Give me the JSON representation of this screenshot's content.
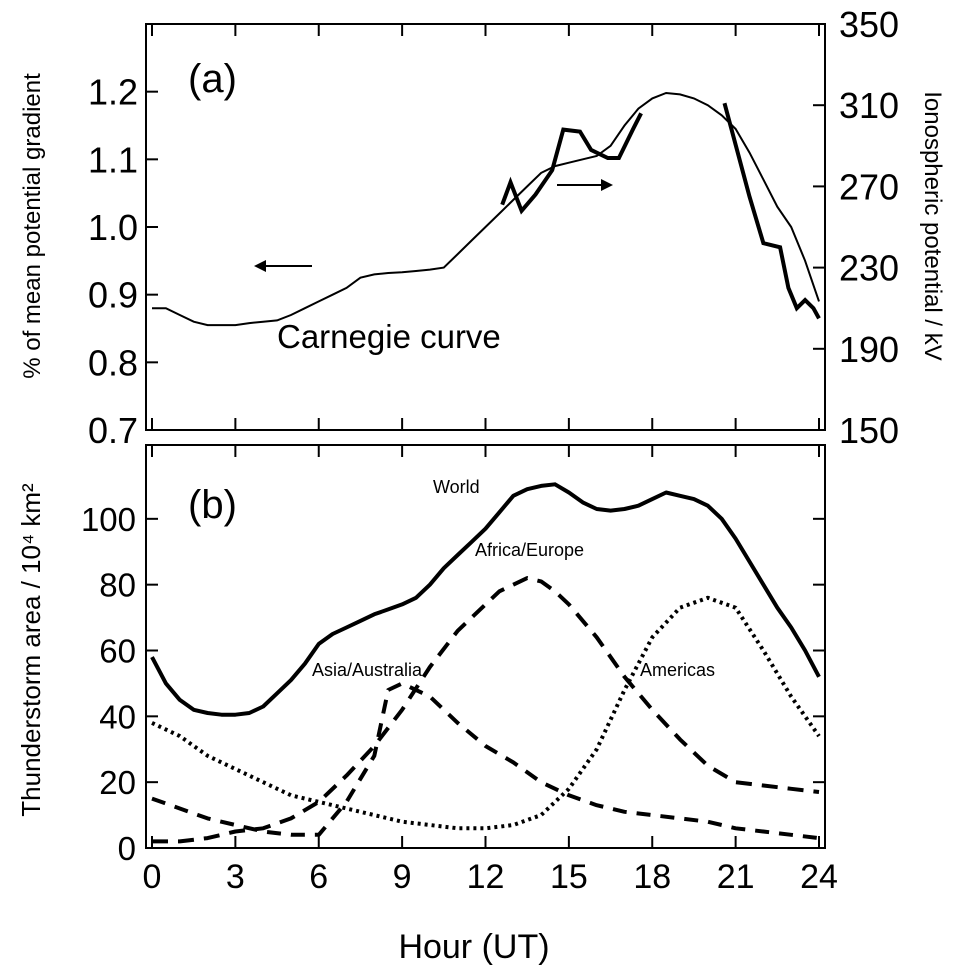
{
  "chart_data": [
    {
      "type": "line",
      "panel_label": "(a)",
      "annotation": "Carnegie curve",
      "ylabel_left": "% of mean potential gradient",
      "ylabel_right": "Ionospheric potential / kV",
      "xlim": [
        0,
        24
      ],
      "ylim_left": [
        0.7,
        1.3
      ],
      "ylim_right": [
        150,
        350
      ],
      "yticks_left": [
        "0.7",
        "0.8",
        "0.9",
        "1.0",
        "1.1",
        "1.2"
      ],
      "yticks_right": [
        "150",
        "190",
        "230",
        "270",
        "310",
        "350"
      ],
      "series": [
        {
          "axis": "left",
          "style": "thin",
          "x": [
            0,
            0.5,
            1,
            1.5,
            2,
            2.5,
            3,
            3.5,
            4,
            4.5,
            5,
            5.5,
            6,
            6.5,
            7,
            7.5,
            8,
            8.5,
            9,
            9.5,
            10,
            10.5,
            11,
            11.5,
            12,
            12.5,
            13,
            13.5,
            14,
            14.5,
            15,
            15.5,
            16,
            16.5,
            17,
            17.5,
            18,
            18.5,
            19,
            19.5,
            20,
            20.5,
            21,
            21.5,
            22,
            22.5,
            23,
            23.5,
            24
          ],
          "values": [
            0.88,
            0.88,
            0.87,
            0.86,
            0.855,
            0.855,
            0.855,
            0.858,
            0.86,
            0.862,
            0.87,
            0.88,
            0.89,
            0.9,
            0.91,
            0.925,
            0.93,
            0.932,
            0.933,
            0.935,
            0.937,
            0.94,
            0.96,
            0.98,
            1.0,
            1.02,
            1.04,
            1.06,
            1.08,
            1.09,
            1.095,
            1.1,
            1.105,
            1.12,
            1.15,
            1.175,
            1.19,
            1.198,
            1.196,
            1.19,
            1.18,
            1.165,
            1.145,
            1.11,
            1.07,
            1.03,
            1.0,
            0.95,
            0.89
          ]
        },
        {
          "axis": "right",
          "style": "thick",
          "x": [
            12.6,
            12.9,
            13.3,
            13.8,
            14.4,
            14.8,
            15.4,
            15.8,
            16.4,
            16.8,
            17.3,
            17.6
          ],
          "values": [
            261,
            272,
            258,
            266,
            278,
            298,
            297,
            288,
            284,
            284,
            298,
            306
          ],
          "x2": [
            20.6,
            21.5,
            22.0,
            22.6,
            22.9,
            23.2,
            23.5,
            23.8,
            24.0
          ],
          "values2": [
            311,
            265,
            242,
            240,
            220,
            210,
            214,
            210,
            205
          ]
        }
      ]
    },
    {
      "type": "line",
      "panel_label": "(b)",
      "xlabel": "Hour (UT)",
      "ylabel": "Thunderstorm area / 10⁴ km²",
      "xlim": [
        0,
        24
      ],
      "ylim": [
        0,
        120
      ],
      "xticks": [
        "0",
        "3",
        "6",
        "9",
        "12",
        "15",
        "18",
        "21",
        "24"
      ],
      "yticks": [
        "0",
        "20",
        "40",
        "60",
        "80",
        "100"
      ],
      "series": [
        {
          "name": "World",
          "style": "solid-thick",
          "x": [
            0,
            0.5,
            1,
            1.5,
            2,
            2.5,
            3,
            3.5,
            4,
            4.5,
            5,
            5.5,
            6,
            6.5,
            7,
            7.5,
            8,
            8.5,
            9,
            9.5,
            10,
            10.5,
            11,
            11.5,
            12,
            12.5,
            13,
            13.5,
            14,
            14.5,
            15,
            15.5,
            16,
            16.5,
            17,
            17.5,
            18,
            18.5,
            19,
            19.5,
            20,
            20.5,
            21,
            21.5,
            22,
            22.5,
            23,
            23.5,
            24
          ],
          "values": [
            58,
            50,
            45,
            42,
            41,
            40.5,
            40.5,
            41,
            43,
            47,
            51,
            56,
            62,
            65,
            67,
            69,
            71,
            72.5,
            74,
            76,
            80,
            85,
            89,
            93,
            97,
            102,
            107,
            109,
            110,
            110.5,
            108,
            105,
            103,
            102.5,
            103,
            104,
            106,
            108,
            107,
            106,
            104,
            100,
            94,
            87,
            80,
            73,
            67,
            60,
            52
          ]
        },
        {
          "name": "Africa/Europe",
          "style": "long-dash",
          "x": [
            0,
            1,
            2,
            3,
            4,
            5,
            6,
            7,
            8,
            9,
            10,
            11,
            12,
            12.5,
            13,
            13.5,
            14,
            14.5,
            15,
            16,
            17,
            18,
            19,
            20,
            21,
            22,
            23,
            24
          ],
          "values": [
            2,
            2,
            3,
            5,
            6,
            9,
            14,
            22,
            31,
            42,
            55,
            66,
            74,
            78,
            80,
            82,
            81,
            78,
            74,
            64,
            52,
            42,
            33,
            25,
            20,
            19,
            18,
            17
          ]
        },
        {
          "name": "Asia/Australia",
          "style": "dash",
          "x": [
            0,
            1,
            2,
            3,
            4,
            5,
            6,
            7,
            8,
            8.5,
            9,
            10,
            11,
            12,
            13,
            14,
            15,
            16,
            17,
            18,
            19,
            20,
            21,
            22,
            23,
            24
          ],
          "values": [
            15,
            12,
            9,
            7,
            5,
            4,
            4,
            14,
            28,
            48,
            50,
            46,
            38,
            31,
            26,
            20,
            16,
            13,
            11,
            10,
            9,
            8,
            6,
            5,
            4,
            3
          ]
        },
        {
          "name": "Americas",
          "style": "dot",
          "x": [
            0,
            1,
            2,
            3,
            4,
            5,
            6,
            7,
            8,
            9,
            10,
            11,
            12,
            13,
            14,
            15,
            16,
            17,
            18,
            19,
            20,
            21,
            22,
            23,
            24
          ],
          "values": [
            38,
            34,
            28,
            24,
            20,
            16,
            14,
            12,
            10,
            8,
            7,
            6,
            6,
            7,
            10,
            18,
            30,
            48,
            64,
            73,
            76,
            73,
            60,
            46,
            34
          ]
        }
      ],
      "labels": [
        "World",
        "Africa/Europe",
        "Asia/Australia",
        "Americas"
      ]
    }
  ]
}
